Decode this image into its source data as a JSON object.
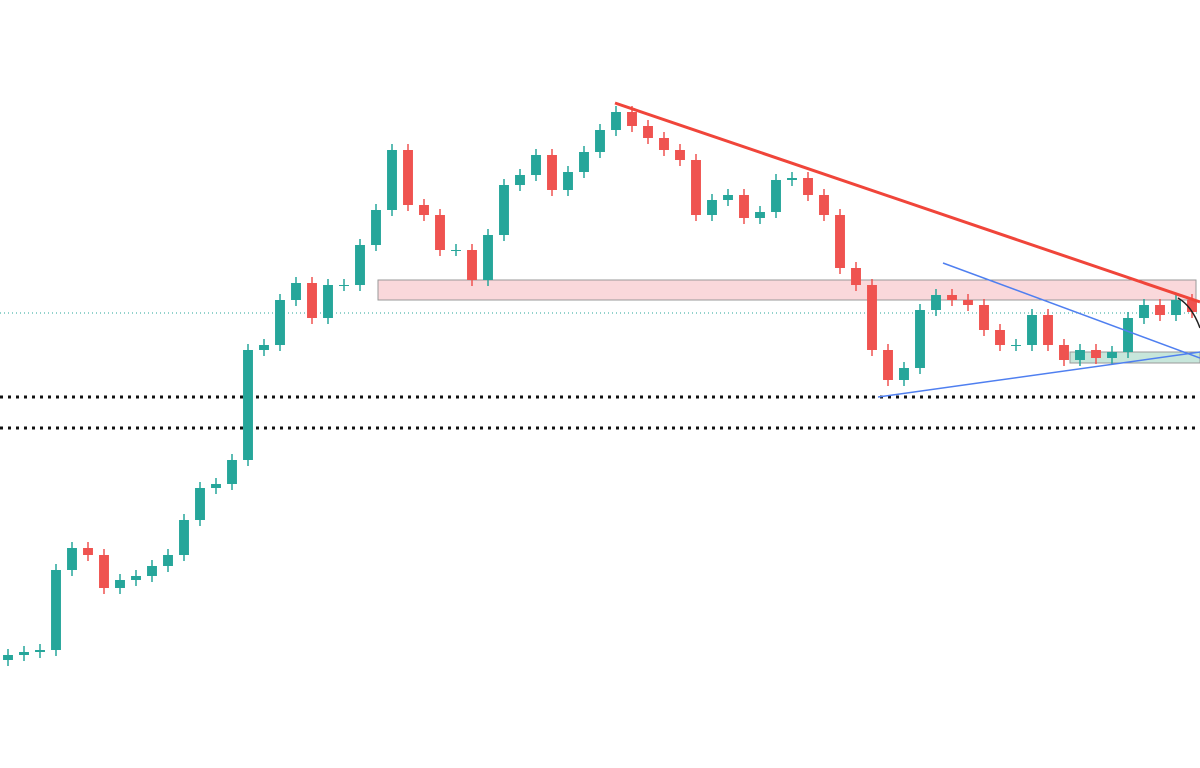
{
  "chart_data": {
    "type": "candlestick",
    "ylim": [
      0,
      768
    ],
    "up_color": "#26a69a",
    "down_color": "#ef5350",
    "open": [
      108,
      113,
      116,
      118,
      198,
      220,
      213,
      180,
      188,
      192,
      202,
      213,
      248,
      280,
      284,
      308,
      418,
      423,
      468,
      485,
      450,
      483,
      483,
      523,
      558,
      618,
      563,
      553,
      518,
      518,
      488,
      533,
      583,
      593,
      613,
      578,
      596,
      616,
      638,
      656,
      642,
      630,
      618,
      608,
      553,
      568,
      573,
      550,
      556,
      588,
      590,
      573,
      553,
      500,
      483,
      418,
      388,
      400,
      458,
      473,
      468,
      463,
      438,
      423,
      423,
      453,
      423,
      408,
      418,
      410,
      416,
      450,
      463,
      453,
      468
    ],
    "high": [
      119,
      122,
      124,
      204,
      226,
      226,
      219,
      194,
      198,
      208,
      219,
      254,
      286,
      290,
      314,
      424,
      429,
      474,
      491,
      491,
      489,
      489,
      529,
      564,
      624,
      624,
      569,
      559,
      524,
      524,
      539,
      589,
      599,
      619,
      619,
      602,
      622,
      644,
      662,
      662,
      648,
      636,
      624,
      614,
      574,
      579,
      579,
      562,
      594,
      596,
      596,
      579,
      559,
      506,
      489,
      424,
      406,
      464,
      479,
      479,
      474,
      469,
      444,
      429,
      459,
      459,
      429,
      424,
      424,
      422,
      456,
      469,
      469,
      474,
      474
    ],
    "low": [
      102,
      107,
      110,
      112,
      192,
      207,
      174,
      174,
      182,
      186,
      196,
      207,
      242,
      274,
      278,
      302,
      412,
      417,
      462,
      444,
      444,
      477,
      477,
      517,
      552,
      557,
      547,
      512,
      512,
      482,
      482,
      527,
      577,
      587,
      572,
      572,
      590,
      610,
      632,
      636,
      624,
      612,
      602,
      547,
      547,
      562,
      544,
      544,
      550,
      582,
      567,
      547,
      494,
      477,
      412,
      382,
      382,
      394,
      452,
      462,
      457,
      432,
      417,
      417,
      417,
      417,
      402,
      402,
      404,
      404,
      410,
      444,
      447,
      447,
      450
    ],
    "close": [
      113,
      116,
      118,
      198,
      220,
      213,
      180,
      188,
      192,
      202,
      213,
      248,
      280,
      284,
      308,
      418,
      423,
      468,
      485,
      450,
      483,
      483,
      523,
      558,
      618,
      563,
      553,
      518,
      518,
      488,
      533,
      583,
      593,
      613,
      578,
      596,
      616,
      638,
      656,
      642,
      630,
      618,
      608,
      553,
      568,
      573,
      550,
      556,
      588,
      590,
      573,
      553,
      500,
      483,
      418,
      388,
      400,
      458,
      473,
      468,
      463,
      438,
      423,
      423,
      453,
      423,
      408,
      418,
      410,
      416,
      450,
      463,
      453,
      468,
      456
    ]
  }
}
